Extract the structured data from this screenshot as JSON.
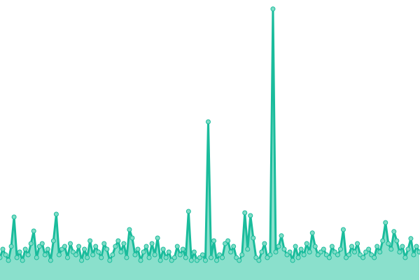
{
  "chart_data": {
    "type": "area",
    "title": "",
    "xlabel": "",
    "ylabel": "",
    "ylim": [
      0,
      100
    ],
    "grid": false,
    "legend": "none",
    "colors": {
      "line": "#1abc9c",
      "fill": "#8ae0cc",
      "marker_fill": "#7fdcc6",
      "marker_stroke": "#1abc9c"
    },
    "values": [
      8,
      11,
      9,
      7,
      12,
      22.5,
      8,
      10,
      7,
      11,
      9,
      13,
      17.5,
      8,
      12,
      13,
      9,
      11,
      7,
      14,
      23.5,
      9,
      11,
      12,
      8,
      13,
      10,
      9,
      12,
      7,
      11,
      8,
      14,
      9,
      12,
      10,
      8,
      13,
      11,
      7,
      9,
      12,
      14,
      10,
      13,
      8,
      18,
      15,
      9,
      11,
      7,
      10,
      12,
      8,
      13,
      9,
      15,
      7,
      11,
      8,
      10,
      7,
      8,
      12,
      9,
      11,
      8,
      24.5,
      7,
      10,
      7,
      8,
      9,
      7,
      56.5,
      8,
      14,
      7,
      9,
      8,
      13,
      14,
      10,
      12,
      8,
      7,
      9,
      24,
      11,
      23,
      15,
      8,
      7,
      10,
      13,
      8,
      9,
      96.8,
      10,
      12,
      15.8,
      11,
      9,
      10,
      7,
      12,
      8,
      11,
      9,
      13,
      10,
      16.8,
      12,
      9,
      10,
      11,
      9,
      8,
      12,
      10,
      9,
      11,
      18,
      8,
      9,
      12,
      10,
      13,
      9,
      8,
      10,
      11,
      9,
      8,
      12,
      10,
      14,
      20.5,
      13,
      11,
      17.3,
      14,
      10,
      12,
      8,
      11,
      14.8,
      9,
      12,
      10
    ]
  }
}
